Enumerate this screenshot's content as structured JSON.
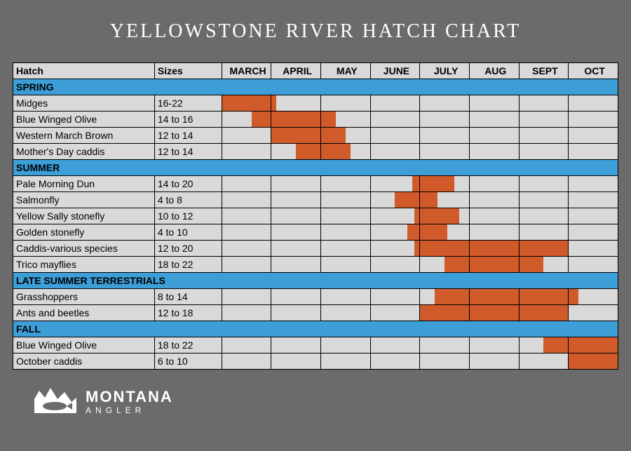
{
  "title": "YELLOWSTONE RIVER HATCH CHART",
  "colors": {
    "page_bg": "#6b6b6b",
    "header_bg": "#d9d9d9",
    "cell_bg": "#d9d9d9",
    "section_bg": "#3d9ed8",
    "bar_color": "#d15a2a",
    "border": "#000000",
    "title_color": "#ffffff"
  },
  "columns": {
    "hatch": "Hatch",
    "sizes": "Sizes",
    "months": [
      "MARCH",
      "APRIL",
      "MAY",
      "JUNE",
      "JULY",
      "AUG",
      "SEPT",
      "OCT"
    ]
  },
  "month_scale": {
    "start": 3,
    "end": 10
  },
  "sections": [
    {
      "label": "SPRING",
      "rows": [
        {
          "name": "Midges",
          "size": "16-22",
          "span": [
            3.0,
            4.1
          ]
        },
        {
          "name": "Blue Winged Olive",
          "size": "14 to 16",
          "span": [
            3.6,
            5.3
          ]
        },
        {
          "name": "Western March Brown",
          "size": "12 to 14",
          "span": [
            4.0,
            5.5
          ]
        },
        {
          "name": "Mother's Day caddis",
          "size": "12 to 14",
          "span": [
            4.5,
            5.6
          ]
        }
      ]
    },
    {
      "label": "SUMMER",
      "rows": [
        {
          "name": "Pale Morning Dun",
          "size": "14 to 20",
          "span": [
            6.85,
            7.7
          ]
        },
        {
          "name": "Salmonfly",
          "size": "4 to 8",
          "span": [
            6.5,
            7.35
          ]
        },
        {
          "name": "Yellow Sally stonefly",
          "size": "10 to 12",
          "span": [
            6.9,
            7.8
          ]
        },
        {
          "name": "Golden stonefly",
          "size": "4 to 10",
          "span": [
            6.75,
            7.55
          ]
        },
        {
          "name": "Caddis-various species",
          "size": "12 to 20",
          "span": [
            6.9,
            10.0
          ]
        },
        {
          "name": "Trico mayflies",
          "size": "18 to 22",
          "span": [
            7.5,
            9.5
          ]
        }
      ]
    },
    {
      "label": "LATE SUMMER TERRESTRIALS",
      "rows": [
        {
          "name": "Grasshoppers",
          "size": "8 to 14",
          "span": [
            7.3,
            10.2
          ]
        },
        {
          "name": "Ants and beetles",
          "size": "12 to 18",
          "span": [
            7.0,
            10.0
          ]
        }
      ]
    },
    {
      "label": "FALL",
      "rows": [
        {
          "name": "Blue Winged Olive",
          "size": "18 to 22",
          "span": [
            9.5,
            11.0
          ]
        },
        {
          "name": "October caddis",
          "size": "6 to 10",
          "span": [
            10.0,
            11.0
          ]
        }
      ]
    }
  ],
  "brand": {
    "line1": "MONTANA",
    "line2": "ANGLER"
  }
}
